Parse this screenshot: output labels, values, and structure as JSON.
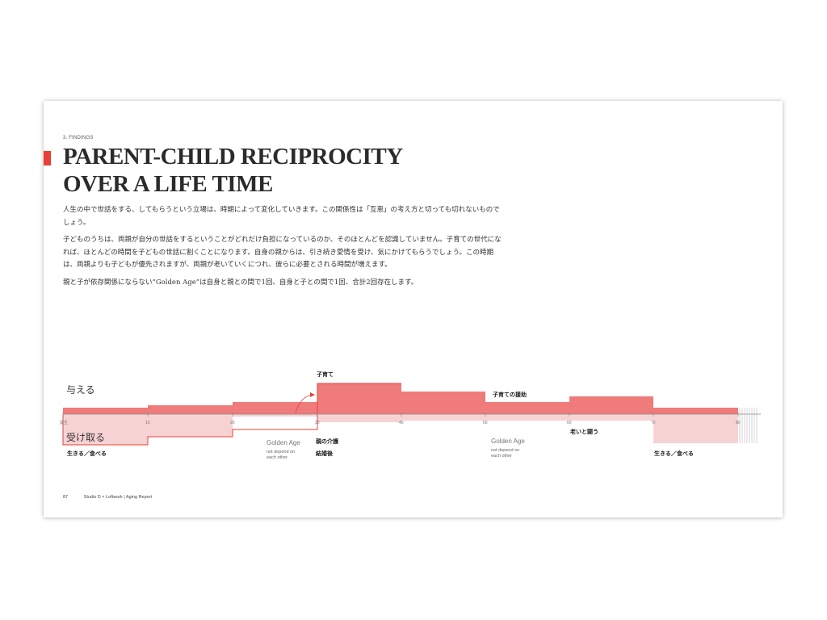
{
  "page": {
    "section_label": "3. FINDINGS",
    "title_line1": "PARENT-CHILD RECIPROCITY",
    "title_line2": "OVER A LIFE TIME",
    "paragraphs": [
      "人生の中で世話をする、してもらうという立場は、時期によって変化していきます。この関係性は「互恵」の考え方と切っても切れないものでしょう。",
      "子どものうちは、両親が自分の世話をするということがどれだけ負担になっているのか、そのほとんどを認識していません。子育ての世代になれば、ほとんどの時間を子どもの世話に割くことになります。自身の親からは、引き続き愛情を受け、気にかけてもらうでしょう。この時期は、両親よりも子どもが優先されますが、両親が老いていくにつれ、彼らに必要とされる時間が増えます。",
      "親と子が依存関係にならない”Golden Age”は自身と親との間で1回、自身と子との間で1回、合計2回存在します。"
    ],
    "footer": {
      "page_number": "87",
      "credit": "Studio D × Loftwork | Aging Report"
    }
  },
  "diagram": {
    "give_label": "与える",
    "receive_label": "受け取る",
    "ticks": [
      "誕生",
      "10",
      "20",
      "30",
      "40",
      "50",
      "60",
      "70",
      "80"
    ],
    "annotations": {
      "childcare": "子育て",
      "childcare_support": "子育ての援助",
      "parent_care": "親の介護",
      "after_marriage": "結婚後",
      "fight_aging": "老いと闘う",
      "live_eat_left": "生きる／食べる",
      "live_eat_right": "生きる／食べる",
      "golden_age_1": "Golden Age",
      "golden_age_1_sub1": "not depend on",
      "golden_age_1_sub2": "each other",
      "golden_age_2": "Golden Age",
      "golden_age_2_sub1": "not depend on",
      "golden_age_2_sub2": "each other"
    },
    "colors": {
      "give": "#ef7b7b",
      "receive": "#f7d2d2",
      "accent": "#e8413a",
      "axis": "#888888"
    }
  }
}
